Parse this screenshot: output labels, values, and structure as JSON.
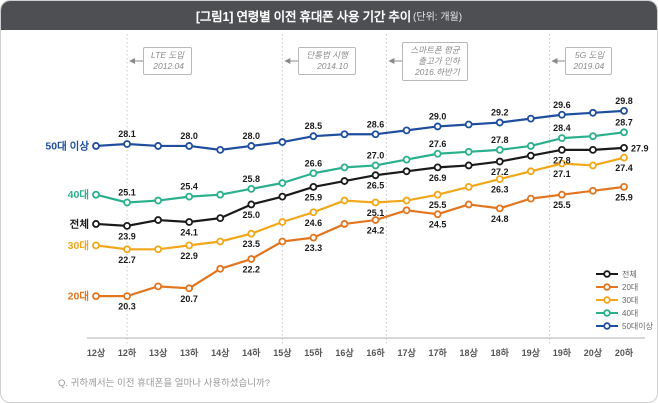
{
  "header": {
    "title": "[그림1] 연령별 이전 휴대폰 사용 기간 추이",
    "unit": "(단위: 개월)"
  },
  "footer": {
    "question": "Q. 귀하께서는 이전 휴대폰을 얼마나 사용하셨습니까?"
  },
  "colors": {
    "header_bg": "#4d4f52",
    "total": "#1a1a1a",
    "age20": "#e2751f",
    "age30": "#f2a71b",
    "age40": "#2bb08d",
    "age50": "#1f4e9f",
    "event_line": "#c9c9c9",
    "arrow": "#8a8a8a",
    "axis_line": "#b0b0b0",
    "tick_text": "#555555",
    "data_label_text": "#1a1a1a",
    "legend_text": "#666666"
  },
  "chart_data": {
    "type": "line",
    "title": "연령별 이전 휴대폰 사용 기간 추이",
    "unit": "개월",
    "x_categories": [
      "12상",
      "12하",
      "13상",
      "13하",
      "14상",
      "14하",
      "15상",
      "15하",
      "16상",
      "16하",
      "17상",
      "17하",
      "18상",
      "18하",
      "19상",
      "19하",
      "20상",
      "20하"
    ],
    "labeled_indices": [
      1,
      3,
      5,
      7,
      9,
      11,
      13,
      15,
      17
    ],
    "series": [
      {
        "name": "전체",
        "axis_label": "전체",
        "color_key": "total",
        "label_side": "below",
        "values": [
          24.0,
          23.9,
          24.2,
          24.1,
          24.3,
          25.0,
          25.4,
          25.9,
          26.2,
          26.5,
          26.7,
          26.9,
          27.0,
          27.2,
          27.5,
          27.8,
          27.8,
          27.9
        ],
        "printed_labels": [
          23.9,
          24.1,
          25.0,
          25.9,
          26.5,
          26.9,
          27.2,
          27.8,
          27.9
        ]
      },
      {
        "name": "20대",
        "axis_label": "20대",
        "color_key": "age20",
        "label_side": "below",
        "values": [
          20.3,
          20.3,
          20.8,
          20.7,
          21.7,
          22.2,
          23.1,
          23.3,
          24.0,
          24.2,
          24.7,
          24.5,
          25.0,
          24.8,
          25.3,
          25.5,
          25.7,
          25.9
        ],
        "printed_labels": [
          20.3,
          20.7,
          22.2,
          23.3,
          24.2,
          24.5,
          24.8,
          25.5,
          25.9
        ]
      },
      {
        "name": "30대",
        "axis_label": "30대",
        "color_key": "age30",
        "label_side": "below",
        "values": [
          22.9,
          22.7,
          22.7,
          22.9,
          23.1,
          23.5,
          24.1,
          24.6,
          25.2,
          25.1,
          25.2,
          25.5,
          25.9,
          26.3,
          26.7,
          27.1,
          27.0,
          27.4
        ],
        "printed_labels": [
          22.7,
          22.9,
          23.5,
          24.6,
          25.1,
          25.5,
          26.3,
          27.1,
          27.4
        ]
      },
      {
        "name": "40대",
        "axis_label": "40대",
        "color_key": "age40",
        "label_side": "above",
        "values": [
          25.5,
          25.1,
          25.2,
          25.4,
          25.5,
          25.8,
          26.1,
          26.6,
          26.9,
          27.0,
          27.3,
          27.6,
          27.7,
          27.8,
          28.0,
          28.4,
          28.5,
          28.7
        ],
        "printed_labels": [
          25.1,
          25.4,
          25.8,
          26.6,
          27.0,
          27.6,
          27.8,
          28.4,
          28.7
        ]
      },
      {
        "name": "50대이상",
        "axis_label": "50대 이상",
        "color_key": "age50",
        "label_side": "above",
        "values": [
          28.0,
          28.1,
          28.0,
          28.0,
          27.8,
          28.0,
          28.2,
          28.5,
          28.6,
          28.6,
          28.8,
          29.0,
          29.1,
          29.2,
          29.4,
          29.6,
          29.7,
          29.8
        ],
        "printed_labels": [
          28.1,
          28.0,
          28.0,
          28.5,
          28.6,
          29.0,
          29.2,
          29.6,
          29.8
        ]
      }
    ],
    "events": [
      {
        "lines": [
          "LTE 도입",
          "2012.04"
        ],
        "x_index": 1
      },
      {
        "lines": [
          "단통법 시행",
          "2014.10"
        ],
        "x_index": 6
      },
      {
        "lines": [
          "스마트폰 평균",
          "출고가 인하",
          "2016.하반기"
        ],
        "x_index": 9.35
      },
      {
        "lines": [
          "5G 도입",
          "2019.04"
        ],
        "x_index": 14.6
      }
    ],
    "legend": [
      "전체",
      "20대",
      "30대",
      "40대",
      "50대이상"
    ],
    "legend_position": "bottom-right",
    "ylim": [
      18.2,
      33.0
    ],
    "grid": false
  }
}
